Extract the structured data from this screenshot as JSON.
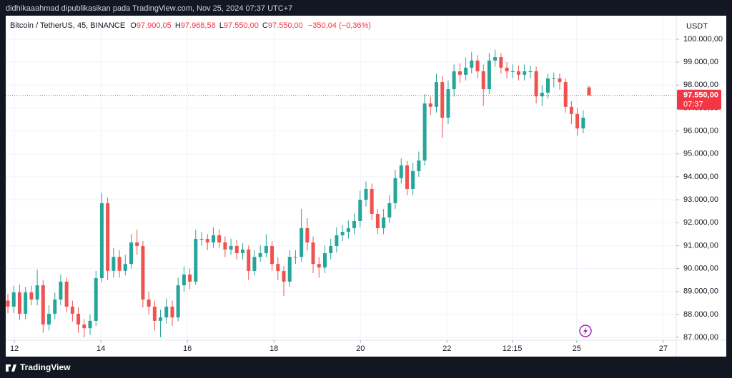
{
  "header": {
    "author_line": "didhikaaahmad dipublikasikan pada TradingView.com, Nov 25, 2024 07:37 UTC+7"
  },
  "chart_data": {
    "type": "candlestick",
    "title": "Bitcoin / TetherUS, 45, BINANCE",
    "ohlc_legend": {
      "open_key": "O",
      "open": "97.900,05",
      "high_key": "H",
      "high": "97.968,58",
      "low_key": "L",
      "low": "97.550,00",
      "close_key": "C",
      "close": "97.550,00",
      "change": "−350,04 (−0,36%)"
    },
    "y_unit": "USDT",
    "price_label": "97.550,00",
    "time_label": "07:37",
    "up_color": "#26a69a",
    "down_color": "#ef5350",
    "grid": true,
    "xlim": [
      11.8,
      27.3
    ],
    "xticks": [
      12,
      14,
      16,
      18,
      20,
      22,
      {
        "value": 23.51,
        "label": "12:15"
      },
      25,
      27
    ],
    "ylim": [
      86876,
      101026
    ],
    "yticks": [
      {
        "value": 87000,
        "label": "87.000,00"
      },
      {
        "value": 88000,
        "label": "88.000,00"
      },
      {
        "value": 89000,
        "label": "89.000,00"
      },
      {
        "value": 90000,
        "label": "90.000,00"
      },
      {
        "value": 91000,
        "label": "91.000,00"
      },
      {
        "value": 92000,
        "label": "92.000,00"
      },
      {
        "value": 93000,
        "label": "93.000,00"
      },
      {
        "value": 94000,
        "label": "94.000,00"
      },
      {
        "value": 95000,
        "label": "95.000,00"
      },
      {
        "value": 96000,
        "label": "96.000,00"
      },
      {
        "value": 97000,
        "label": "97.000,00"
      },
      {
        "value": 98000,
        "label": "98.000,00"
      },
      {
        "value": 99000,
        "label": "99.000,00"
      },
      {
        "value": 100000,
        "label": "100.000,00"
      }
    ],
    "x": [
      11.85,
      11.986,
      12.121,
      12.257,
      12.393,
      12.529,
      12.664,
      12.8,
      12.936,
      13.071,
      13.207,
      13.343,
      13.478,
      13.614,
      13.75,
      13.886,
      14.021,
      14.157,
      14.293,
      14.428,
      14.564,
      14.7,
      14.835,
      14.971,
      15.107,
      15.243,
      15.378,
      15.514,
      15.65,
      15.785,
      15.921,
      16.057,
      16.192,
      16.328,
      16.464,
      16.6,
      16.735,
      16.871,
      17.007,
      17.142,
      17.278,
      17.414,
      17.549,
      17.685,
      17.821,
      17.957,
      18.092,
      18.228,
      18.364,
      18.499,
      18.635,
      18.771,
      18.906,
      19.042,
      19.178,
      19.314,
      19.449,
      19.585,
      19.721,
      19.856,
      19.992,
      20.128,
      20.263,
      20.399,
      20.535,
      20.671,
      20.806,
      20.942,
      21.078,
      21.213,
      21.349,
      21.485,
      21.62,
      21.756,
      21.892,
      22.028,
      22.163,
      22.299,
      22.435,
      22.57,
      22.706,
      22.842,
      22.977,
      23.113,
      23.249,
      23.385,
      23.52,
      23.656,
      23.792,
      23.927,
      24.063,
      24.199,
      24.334,
      24.47,
      24.606,
      24.742,
      24.877,
      25.013,
      25.149,
      25.284
    ],
    "open": [
      88600,
      88340,
      88960,
      88030,
      88960,
      88650,
      89270,
      87560,
      88030,
      88650,
      89430,
      88340,
      88030,
      87560,
      87400,
      87720,
      89580,
      92850,
      89900,
      90510,
      89900,
      90200,
      91140,
      90980,
      88650,
      88340,
      87720,
      87870,
      88340,
      87870,
      89270,
      89740,
      89430,
      91290,
      91290,
      91140,
      91450,
      91140,
      90830,
      90980,
      90670,
      90830,
      89890,
      90510,
      90670,
      90980,
      90200,
      89890,
      89430,
      90510,
      90510,
      91760,
      91140,
      90200,
      90050,
      90670,
      90980,
      91450,
      91600,
      91760,
      92070,
      93000,
      93470,
      92380,
      91760,
      92230,
      92850,
      93940,
      94500,
      93470,
      94250,
      94710,
      97200,
      97050,
      98130,
      96580,
      97820,
      98600,
      98450,
      98760,
      99070,
      98600,
      97820,
      99070,
      99220,
      98760,
      98600,
      98600,
      98450,
      98600,
      98600,
      97510,
      97670,
      98290,
      98290,
      98130,
      97050,
      96740,
      96110,
      97900.05
    ],
    "high": [
      88900,
      89250,
      89300,
      89200,
      89250,
      89950,
      89500,
      88400,
      88950,
      89750,
      89600,
      88600,
      88300,
      87800,
      88000,
      89900,
      93300,
      93100,
      90900,
      90800,
      90600,
      91500,
      91700,
      91200,
      89000,
      88600,
      88200,
      88700,
      88600,
      89600,
      90100,
      90000,
      91700,
      91600,
      91500,
      91800,
      91700,
      91400,
      91300,
      91250,
      91100,
      91000,
      90800,
      91000,
      91500,
      91200,
      90500,
      90100,
      90800,
      90800,
      92600,
      92200,
      91400,
      90500,
      91000,
      91300,
      91800,
      91900,
      92100,
      92400,
      93400,
      93800,
      93700,
      92600,
      92600,
      93200,
      94300,
      94800,
      94700,
      94600,
      95100,
      97600,
      97500,
      98500,
      98400,
      98200,
      98900,
      98950,
      99200,
      99450,
      99300,
      98900,
      99400,
      99550,
      99400,
      99000,
      98900,
      98850,
      98900,
      98850,
      98800,
      98000,
      98500,
      98550,
      98500,
      98300,
      97300,
      97000,
      96900,
      97968.58
    ],
    "low": [
      88050,
      88050,
      87750,
      87800,
      88400,
      88400,
      87200,
      87300,
      87800,
      88400,
      88100,
      87700,
      87200,
      87000,
      87100,
      87500,
      89400,
      89500,
      89600,
      89600,
      89700,
      90000,
      90600,
      88300,
      88000,
      87300,
      87000,
      87600,
      87500,
      87700,
      89000,
      89100,
      89300,
      91000,
      90800,
      90900,
      90900,
      90500,
      90600,
      90400,
      90400,
      89500,
      89700,
      90300,
      90500,
      89900,
      89500,
      88800,
      89200,
      90200,
      90300,
      90800,
      89800,
      89600,
      89800,
      90400,
      90700,
      91200,
      91300,
      91500,
      91800,
      92700,
      92100,
      91500,
      91500,
      92000,
      92600,
      93700,
      93200,
      93200,
      94000,
      94500,
      96700,
      96800,
      95700,
      96300,
      97500,
      98100,
      98200,
      98500,
      98300,
      97100,
      97600,
      98800,
      98500,
      98300,
      98300,
      98200,
      98200,
      98300,
      97200,
      97100,
      97400,
      97900,
      97800,
      96800,
      96300,
      95800,
      95900,
      97550
    ],
    "close": [
      88340,
      88960,
      88030,
      88960,
      88650,
      89270,
      87560,
      88030,
      88650,
      89430,
      88340,
      88030,
      87560,
      87400,
      87720,
      89580,
      92850,
      89900,
      90510,
      89900,
      90200,
      91140,
      90980,
      88650,
      88340,
      87720,
      87870,
      88340,
      87870,
      89270,
      89740,
      89430,
      91290,
      91290,
      91140,
      91450,
      91140,
      90830,
      90980,
      90670,
      90830,
      89890,
      90510,
      90670,
      90980,
      90200,
      89890,
      89430,
      90510,
      90510,
      91760,
      91140,
      90200,
      90050,
      90670,
      90980,
      91450,
      91600,
      91760,
      92070,
      93000,
      93470,
      92380,
      91760,
      92230,
      92850,
      93940,
      94500,
      93470,
      94250,
      94710,
      97200,
      97050,
      98130,
      96580,
      97820,
      98600,
      98450,
      98760,
      99070,
      98600,
      97820,
      99070,
      99220,
      98760,
      98600,
      98600,
      98450,
      98600,
      98600,
      97510,
      97670,
      98290,
      98290,
      98130,
      97050,
      96740,
      96110,
      96580,
      97550
    ]
  },
  "footer": {
    "brand": "TradingView"
  }
}
